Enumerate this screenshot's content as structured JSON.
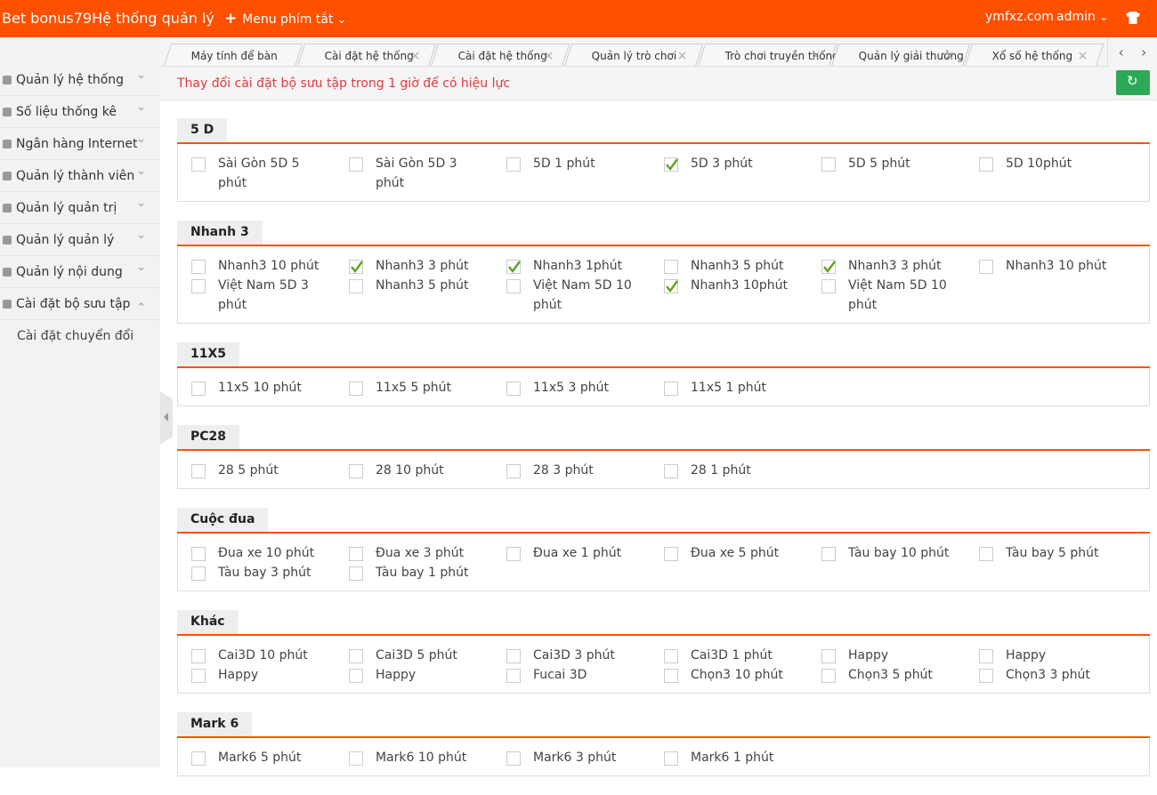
{
  "header": {
    "brand": "Bet bonus79Hệ thống quản lý",
    "menu": "Menu phím tắt",
    "domain": "ymfxz.com",
    "user": "admin"
  },
  "sidebar": {
    "items": [
      {
        "label": "Quản lý hệ thống",
        "open": false
      },
      {
        "label": "Số liệu thống kê",
        "open": false
      },
      {
        "label": "Ngân hàng Internet",
        "open": false
      },
      {
        "label": "Quản lý thành viên",
        "open": false
      },
      {
        "label": "Quản lý quản trị",
        "open": false
      },
      {
        "label": "Quản lý quản lý",
        "open": false
      },
      {
        "label": "Quản lý nội dung",
        "open": false
      },
      {
        "label": "Cài đặt bộ sưu tập",
        "open": true,
        "children": [
          "Cài đặt chuyển đổi"
        ]
      }
    ]
  },
  "tabs": [
    {
      "label": "Máy tính để bàn",
      "closable": false
    },
    {
      "label": "Cài đặt hệ thống",
      "closable": true
    },
    {
      "label": "Cài đặt hệ thống",
      "closable": true
    },
    {
      "label": "Quản lý trò chơi",
      "closable": true
    },
    {
      "label": "Trò chơi truyền thống",
      "closable": true
    },
    {
      "label": "Quản lý giải thưởng",
      "closable": true
    },
    {
      "label": "Xổ số hệ thống",
      "closable": true
    }
  ],
  "notice": "Thay đổi cài đặt bộ sưu tập trong 1 giờ để có hiệu lực",
  "sections": [
    {
      "title": "5 D",
      "items": [
        {
          "label": "Sài Gòn 5D 5 phút",
          "checked": false
        },
        {
          "label": "Sài Gòn 5D 3 phút",
          "checked": false
        },
        {
          "label": "5D 1 phút",
          "checked": false
        },
        {
          "label": "5D 3 phút",
          "checked": true
        },
        {
          "label": "5D 5 phút",
          "checked": false
        },
        {
          "label": "5D 10phút",
          "checked": false
        }
      ]
    },
    {
      "title": "Nhanh 3",
      "items": [
        {
          "label": "Nhanh3 10 phút",
          "checked": false
        },
        {
          "label": "Nhanh3 3 phút",
          "checked": true
        },
        {
          "label": "Nhanh3 1phút",
          "checked": true
        },
        {
          "label": "Nhanh3 5 phút",
          "checked": false
        },
        {
          "label": "Nhanh3 3 phút",
          "checked": true
        },
        {
          "label": "Nhanh3 10 phút",
          "checked": false
        },
        {
          "label": "Việt Nam 5D 3 phút",
          "checked": false
        },
        {
          "label": "Nhanh3 5 phút",
          "checked": false
        },
        {
          "label": "Việt Nam 5D 10 phút",
          "checked": false
        },
        {
          "label": "Nhanh3 10phút",
          "checked": true
        },
        {
          "label": "Việt Nam 5D 10 phút",
          "checked": false
        }
      ]
    },
    {
      "title": "11X5",
      "items": [
        {
          "label": "11x5 10 phút",
          "checked": false
        },
        {
          "label": "11x5 5 phút",
          "checked": false
        },
        {
          "label": "11x5 3 phút",
          "checked": false
        },
        {
          "label": "11x5 1 phút",
          "checked": false
        }
      ]
    },
    {
      "title": "PC28",
      "items": [
        {
          "label": "28 5 phút",
          "checked": false
        },
        {
          "label": "28 10 phút",
          "checked": false
        },
        {
          "label": "28 3 phút",
          "checked": false
        },
        {
          "label": "28 1 phút",
          "checked": false
        }
      ]
    },
    {
      "title": "Cuộc đua",
      "items": [
        {
          "label": "Đua xe 10 phút",
          "checked": false
        },
        {
          "label": "Đua xe 3 phút",
          "checked": false
        },
        {
          "label": "Đua xe 1 phút",
          "checked": false
        },
        {
          "label": "Đua xe 5 phút",
          "checked": false
        },
        {
          "label": "Tàu bay 10 phút",
          "checked": false
        },
        {
          "label": "Tàu bay 5 phút",
          "checked": false
        },
        {
          "label": "Tàu bay 3 phút",
          "checked": false
        },
        {
          "label": "Tàu bay 1 phút",
          "checked": false
        }
      ]
    },
    {
      "title": "Khác",
      "items": [
        {
          "label": "Cai3D 10 phút",
          "checked": false
        },
        {
          "label": "Cai3D 5 phút",
          "checked": false
        },
        {
          "label": "Cai3D 3 phút",
          "checked": false
        },
        {
          "label": "Cai3D 1 phút",
          "checked": false
        },
        {
          "label": "Happy",
          "checked": false
        },
        {
          "label": "Happy",
          "checked": false
        },
        {
          "label": "Happy",
          "checked": false
        },
        {
          "label": "Happy",
          "checked": false
        },
        {
          "label": "Fucai 3D",
          "checked": false
        },
        {
          "label": "Chọn3 10 phút",
          "checked": false
        },
        {
          "label": "Chọn3 5 phút",
          "checked": false
        },
        {
          "label": "Chọn3 3 phút",
          "checked": false
        }
      ]
    },
    {
      "title": "Mark 6",
      "items": [
        {
          "label": "Mark6 5 phút",
          "checked": false
        },
        {
          "label": "Mark6 10 phút",
          "checked": false
        },
        {
          "label": "Mark6 3 phút",
          "checked": false
        },
        {
          "label": "Mark6 1 phút",
          "checked": false
        }
      ]
    }
  ]
}
